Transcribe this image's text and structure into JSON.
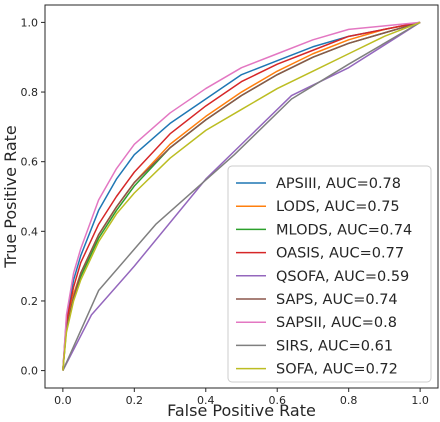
{
  "chart_data": {
    "type": "line",
    "xlabel": "False Positive Rate",
    "ylabel": "True Positive Rate",
    "xlim": [
      -0.05,
      1.05
    ],
    "ylim": [
      -0.05,
      1.05
    ],
    "xticks": [
      "0.0",
      "0.2",
      "0.4",
      "0.6",
      "0.8",
      "1.0"
    ],
    "yticks": [
      "0.0",
      "0.2",
      "0.4",
      "0.6",
      "0.8",
      "1.0"
    ],
    "grid": false,
    "legend_position": "lower-right",
    "series": [
      {
        "name": "APSIII, AUC=0.78",
        "color": "#1f77b4",
        "x": [
          0,
          0.01,
          0.03,
          0.05,
          0.1,
          0.15,
          0.2,
          0.3,
          0.4,
          0.5,
          0.6,
          0.7,
          0.8,
          0.9,
          1.0
        ],
        "y": [
          0,
          0.15,
          0.26,
          0.33,
          0.46,
          0.55,
          0.62,
          0.71,
          0.78,
          0.85,
          0.89,
          0.93,
          0.96,
          0.98,
          1.0
        ]
      },
      {
        "name": "LODS, AUC=0.75",
        "color": "#ff7f0e",
        "x": [
          0,
          0.01,
          0.03,
          0.05,
          0.1,
          0.15,
          0.2,
          0.3,
          0.4,
          0.5,
          0.6,
          0.7,
          0.8,
          0.9,
          1.0
        ],
        "y": [
          0,
          0.13,
          0.22,
          0.28,
          0.39,
          0.47,
          0.54,
          0.65,
          0.73,
          0.8,
          0.86,
          0.91,
          0.95,
          0.98,
          1.0
        ]
      },
      {
        "name": "MLODS, AUC=0.74",
        "color": "#2ca02c",
        "x": [
          0,
          0.01,
          0.03,
          0.05,
          0.1,
          0.15,
          0.2,
          0.3,
          0.4,
          0.5,
          0.6,
          0.7,
          0.8,
          0.9,
          1.0
        ],
        "y": [
          0,
          0.12,
          0.21,
          0.27,
          0.38,
          0.46,
          0.53,
          0.64,
          0.72,
          0.79,
          0.85,
          0.9,
          0.94,
          0.97,
          1.0
        ]
      },
      {
        "name": "OASIS, AUC=0.77",
        "color": "#d62728",
        "x": [
          0,
          0.01,
          0.03,
          0.05,
          0.1,
          0.15,
          0.2,
          0.3,
          0.4,
          0.5,
          0.6,
          0.7,
          0.8,
          0.9,
          1.0
        ],
        "y": [
          0,
          0.14,
          0.24,
          0.31,
          0.42,
          0.5,
          0.57,
          0.68,
          0.76,
          0.83,
          0.88,
          0.92,
          0.96,
          0.98,
          1.0
        ]
      },
      {
        "name": "QSOFA, AUC=0.59",
        "color": "#9467bd",
        "x": [
          0,
          0.08,
          0.2,
          0.4,
          0.64,
          0.8,
          1.0
        ],
        "y": [
          0,
          0.16,
          0.3,
          0.55,
          0.79,
          0.87,
          1.0
        ]
      },
      {
        "name": "SAPS, AUC=0.74",
        "color": "#8c564b",
        "x": [
          0,
          0.01,
          0.03,
          0.05,
          0.1,
          0.15,
          0.2,
          0.3,
          0.4,
          0.5,
          0.6,
          0.7,
          0.8,
          0.9,
          1.0
        ],
        "y": [
          0,
          0.12,
          0.21,
          0.28,
          0.39,
          0.47,
          0.54,
          0.64,
          0.72,
          0.79,
          0.85,
          0.9,
          0.94,
          0.97,
          1.0
        ]
      },
      {
        "name": "SAPSII, AUC=0.8",
        "color": "#e377c2",
        "x": [
          0,
          0.01,
          0.03,
          0.05,
          0.1,
          0.15,
          0.2,
          0.3,
          0.4,
          0.5,
          0.6,
          0.7,
          0.8,
          0.9,
          1.0
        ],
        "y": [
          0,
          0.16,
          0.28,
          0.35,
          0.49,
          0.58,
          0.65,
          0.74,
          0.81,
          0.87,
          0.91,
          0.95,
          0.98,
          0.99,
          1.0
        ]
      },
      {
        "name": "SIRS, AUC=0.61",
        "color": "#7f7f7f",
        "x": [
          0,
          0.1,
          0.26,
          0.48,
          0.64,
          0.8,
          1.0
        ],
        "y": [
          0,
          0.23,
          0.42,
          0.62,
          0.78,
          0.88,
          1.0
        ]
      },
      {
        "name": "SOFA, AUC=0.72",
        "color": "#bcbd22",
        "x": [
          0,
          0.01,
          0.03,
          0.05,
          0.1,
          0.15,
          0.2,
          0.3,
          0.4,
          0.5,
          0.6,
          0.7,
          0.8,
          0.9,
          1.0
        ],
        "y": [
          0,
          0.11,
          0.2,
          0.26,
          0.37,
          0.45,
          0.51,
          0.61,
          0.69,
          0.75,
          0.81,
          0.86,
          0.91,
          0.96,
          1.0
        ]
      }
    ]
  }
}
